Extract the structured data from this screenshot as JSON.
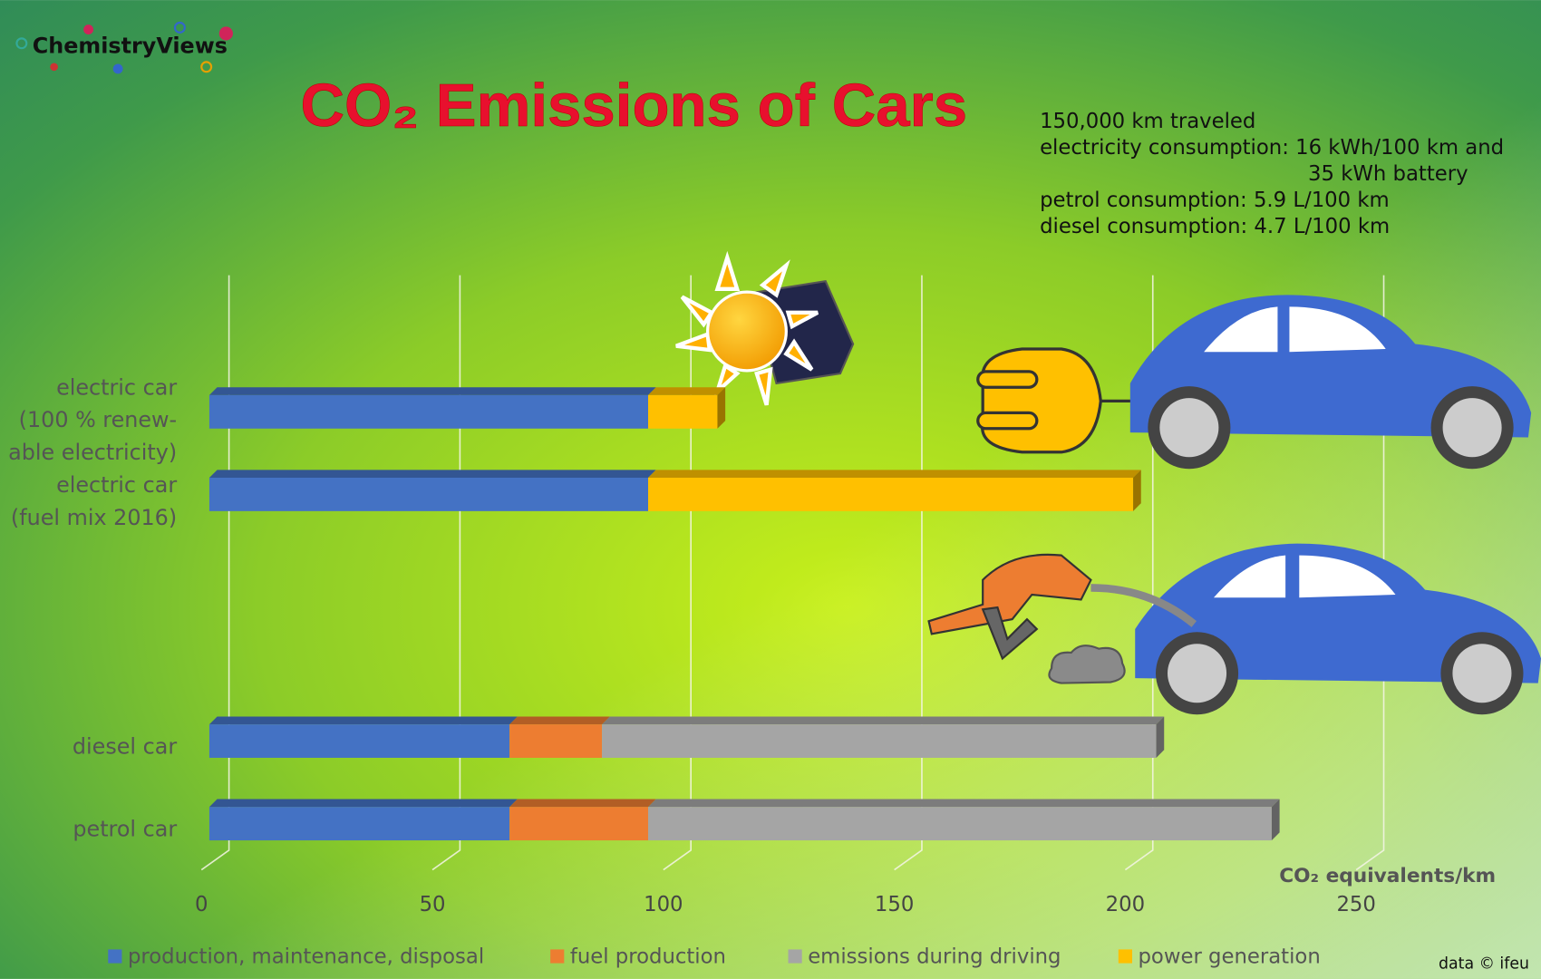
{
  "brand": "ChemistryViews",
  "chart_data": {
    "type": "stacked-bar-horizontal",
    "title": "CO₂ Emissions of Cars",
    "notes": [
      "150,000 km traveled",
      "electricity consumption: 16 kWh/100 km and",
      "35 kWh battery",
      "petrol consumption: 5.9 L/100 km",
      "diesel consumption: 4.7 L/100 km"
    ],
    "categories": [
      "electric car\n(100 % renew-\nable electricity)",
      "electric car\n(fuel mix 2016)",
      "diesel car",
      "petrol car"
    ],
    "series": [
      {
        "name": "production, maintenance, disposal",
        "color": "#4472c4",
        "values": [
          95,
          95,
          65,
          65
        ]
      },
      {
        "name": "fuel production",
        "color": "#ed7d31",
        "values": [
          0,
          0,
          20,
          30
        ]
      },
      {
        "name": "emissions during driving",
        "color": "#a5a5a5",
        "values": [
          0,
          0,
          120,
          135
        ]
      },
      {
        "name": "power generation",
        "color": "#ffc000",
        "values": [
          15,
          105,
          0,
          0
        ]
      }
    ],
    "xlim": [
      0,
      250
    ],
    "xticks": [
      0,
      50,
      100,
      150,
      200,
      250
    ],
    "xlabel": "CO₂ equivalents/km",
    "grid": true,
    "legend": "bottom",
    "credit": "data ©  ifeu"
  }
}
